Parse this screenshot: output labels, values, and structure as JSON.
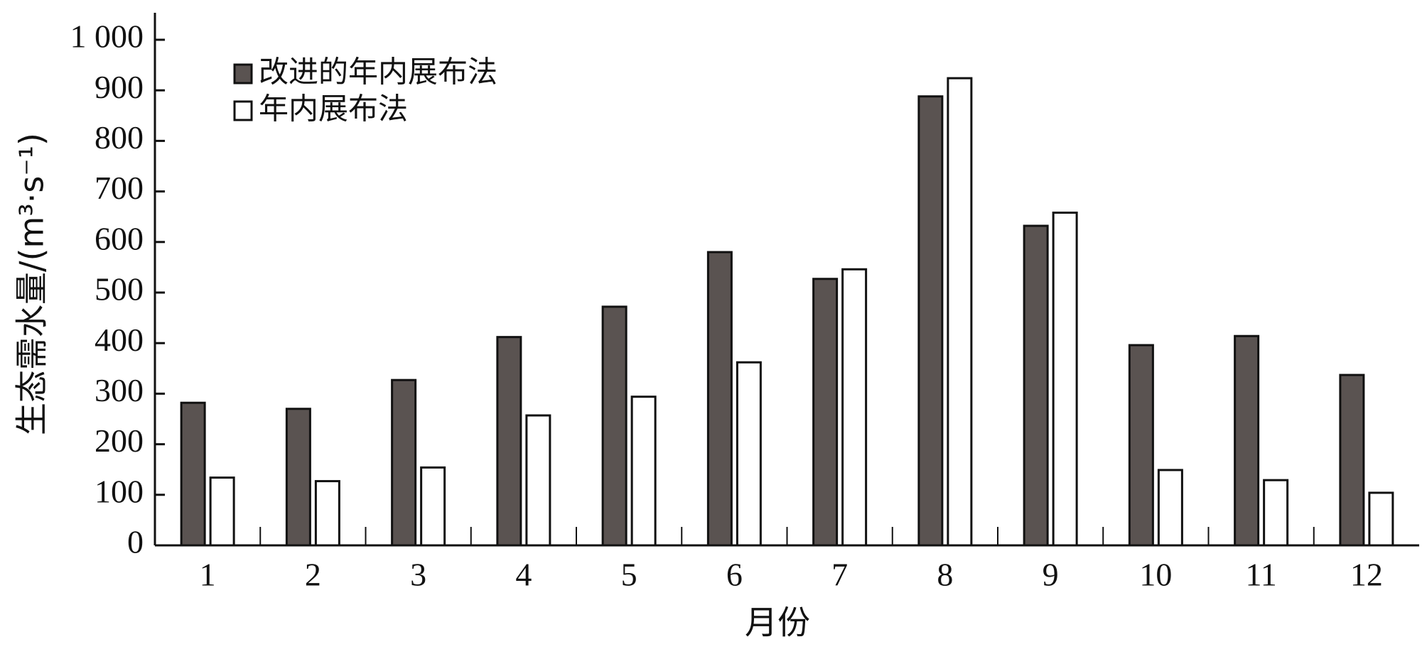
{
  "chart_data": {
    "type": "bar",
    "x_label": "月份",
    "y_label": "生态需水量/(m³·s⁻¹)",
    "categories": [
      "1",
      "2",
      "3",
      "4",
      "5",
      "6",
      "7",
      "8",
      "9",
      "10",
      "11",
      "12"
    ],
    "series": [
      {
        "name": "改进的年内展布法",
        "color": "#5a5351",
        "values": [
          282,
          270,
          327,
          412,
          472,
          580,
          527,
          888,
          632,
          396,
          414,
          337
        ]
      },
      {
        "name": "年内展布法",
        "color": "#ffffff",
        "values": [
          134,
          127,
          154,
          257,
          294,
          362,
          546,
          924,
          658,
          149,
          129,
          104
        ]
      }
    ],
    "ylim": [
      0,
      1000
    ],
    "yticks": [
      0,
      100,
      200,
      300,
      400,
      500,
      600,
      700,
      800,
      900,
      {
        "value": 1000,
        "label": "1 000"
      }
    ],
    "grid": false,
    "legend": "top-left"
  }
}
